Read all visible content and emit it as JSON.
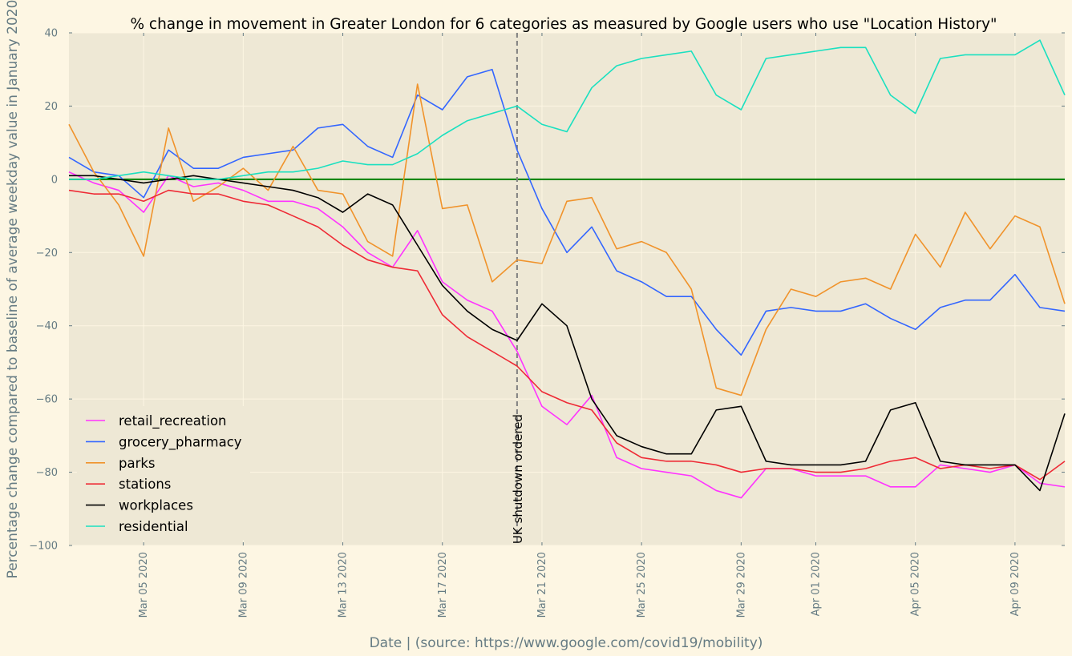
{
  "chart_data": {
    "type": "line",
    "title": "% change in movement in Greater London for 6 categories as measured by Google users who use \"Location History\"",
    "xlabel": "Date | (source: https://www.google.com/covid19/mobility)",
    "ylabel": "Percentage change compared to baseline of average weekday value in January 2020",
    "x": [
      "2020-03-02",
      "2020-03-03",
      "2020-03-04",
      "2020-03-05",
      "2020-03-06",
      "2020-03-07",
      "2020-03-08",
      "2020-03-09",
      "2020-03-10",
      "2020-03-11",
      "2020-03-12",
      "2020-03-13",
      "2020-03-14",
      "2020-03-15",
      "2020-03-16",
      "2020-03-17",
      "2020-03-18",
      "2020-03-19",
      "2020-03-20",
      "2020-03-21",
      "2020-03-22",
      "2020-03-23",
      "2020-03-24",
      "2020-03-25",
      "2020-03-26",
      "2020-03-27",
      "2020-03-28",
      "2020-03-29",
      "2020-03-30",
      "2020-03-31",
      "2020-04-01",
      "2020-04-02",
      "2020-04-03",
      "2020-04-04",
      "2020-04-05",
      "2020-04-06",
      "2020-04-07",
      "2020-04-08",
      "2020-04-09",
      "2020-04-10",
      "2020-04-11"
    ],
    "xlim": [
      "2020-03-02",
      "2020-04-11"
    ],
    "ylim": [
      -100,
      40
    ],
    "x_ticks": [
      {
        "date": "2020-03-05",
        "label": "Mar 05 2020"
      },
      {
        "date": "2020-03-09",
        "label": "Mar 09 2020"
      },
      {
        "date": "2020-03-13",
        "label": "Mar 13 2020"
      },
      {
        "date": "2020-03-17",
        "label": "Mar 17 2020"
      },
      {
        "date": "2020-03-21",
        "label": "Mar 21 2020"
      },
      {
        "date": "2020-03-25",
        "label": "Mar 25 2020"
      },
      {
        "date": "2020-03-29",
        "label": "Mar 29 2020"
      },
      {
        "date": "2020-04-01",
        "label": "Apr 01 2020"
      },
      {
        "date": "2020-04-05",
        "label": "Apr 05 2020"
      },
      {
        "date": "2020-04-09",
        "label": "Apr 09 2020"
      }
    ],
    "y_ticks": [
      40,
      20,
      0,
      -20,
      -40,
      -60,
      -80,
      -100
    ],
    "grid": true,
    "legend_position": "lower-left",
    "baseline": {
      "value": 0,
      "color": "#008000"
    },
    "annotation": {
      "date": "2020-03-20",
      "label": "UK shutdown ordered",
      "color": "#808080"
    },
    "series": [
      {
        "name": "retail_recreation",
        "color": "#ff33ff",
        "values": [
          2,
          -1,
          -3,
          -9,
          1,
          -2,
          -1,
          -3,
          -6,
          -6,
          -8,
          -13,
          -20,
          -24,
          -14,
          -28,
          -33,
          -36,
          -47,
          -62,
          -67,
          -59,
          -76,
          -79,
          -80,
          -81,
          -85,
          -87,
          -79,
          -79,
          -81,
          -81,
          -81,
          -84,
          -84,
          -78,
          -79,
          -80,
          -78,
          -83,
          -84
        ]
      },
      {
        "name": "grocery_pharmacy",
        "color": "#3366ff",
        "values": [
          6,
          2,
          1,
          -5,
          8,
          3,
          3,
          6,
          7,
          8,
          14,
          15,
          9,
          6,
          23,
          19,
          28,
          30,
          8,
          -8,
          -20,
          -13,
          -25,
          -28,
          -32,
          -32,
          -41,
          -48,
          -36,
          -35,
          -36,
          -36,
          -34,
          -38,
          -41,
          -35,
          -33,
          -33,
          -26,
          -35,
          -36
        ]
      },
      {
        "name": "parks",
        "color": "#f0932b",
        "values": [
          15,
          2,
          -7,
          -21,
          14,
          -6,
          -2,
          3,
          -3,
          9,
          -3,
          -4,
          -17,
          -21,
          26,
          -8,
          -7,
          -28,
          -22,
          -23,
          -6,
          -5,
          -19,
          -17,
          -20,
          -30,
          -57,
          -59,
          -41,
          -30,
          -32,
          -28,
          -27,
          -30,
          -15,
          -24,
          -9,
          -19,
          -10,
          -13,
          -34
        ]
      },
      {
        "name": "stations",
        "color": "#ee2a35",
        "values": [
          -3,
          -4,
          -4,
          -6,
          -3,
          -4,
          -4,
          -6,
          -7,
          -10,
          -13,
          -18,
          -22,
          -24,
          -25,
          -37,
          -43,
          -47,
          -51,
          -58,
          -61,
          -63,
          -72,
          -76,
          -77,
          -77,
          -78,
          -80,
          -79,
          -79,
          -80,
          -80,
          -79,
          -77,
          -76,
          -79,
          -78,
          -79,
          -78,
          -82,
          -77
        ]
      },
      {
        "name": "workplaces",
        "color": "#000000",
        "values": [
          1,
          1,
          0,
          -1,
          0,
          1,
          0,
          -1,
          -2,
          -3,
          -5,
          -9,
          -4,
          -7,
          -18,
          -29,
          -36,
          -41,
          -44,
          -34,
          -40,
          -60,
          -70,
          -73,
          -75,
          -75,
          -63,
          -62,
          -77,
          -78,
          -78,
          -78,
          -77,
          -63,
          -61,
          -77,
          -78,
          -78,
          -78,
          -85,
          -64
        ]
      },
      {
        "name": "residential",
        "color": "#1be0c0",
        "values": [
          0,
          0,
          1,
          2,
          1,
          0,
          0,
          1,
          2,
          2,
          3,
          5,
          4,
          4,
          7,
          12,
          16,
          18,
          20,
          15,
          13,
          25,
          31,
          33,
          34,
          35,
          23,
          19,
          33,
          34,
          35,
          36,
          36,
          23,
          18,
          33,
          34,
          34,
          34,
          38,
          23
        ]
      }
    ]
  }
}
